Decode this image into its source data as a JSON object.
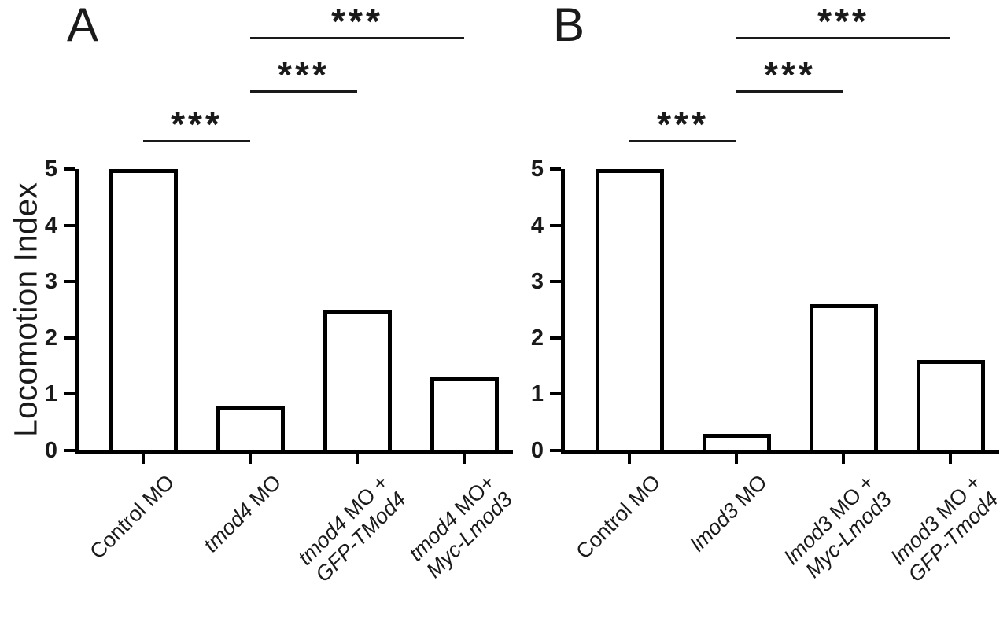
{
  "figure": {
    "background": "#ffffff",
    "ink_color": "#000000",
    "bar_fill": "#ffffff",
    "bar_outline": "#000000"
  },
  "chart_data": [
    {
      "type": "bar",
      "panel": "A",
      "title": "",
      "xlabel": "",
      "ylabel": "Locomotion Index",
      "ylim": [
        0,
        5
      ],
      "yticks": [
        0,
        1,
        2,
        3,
        4,
        5
      ],
      "grid": false,
      "legend": "none",
      "category_names": [
        "Control MO",
        "tmod4 MO",
        "tmod4 MO + GFP-TMod4",
        "tmod4 MO + Myc-Lmod3"
      ],
      "values": [
        5.0,
        0.8,
        2.5,
        1.3
      ],
      "categories": [
        {
          "lines": [
            [
              {
                "text": "Control MO",
                "italic": false
              }
            ]
          ]
        },
        {
          "lines": [
            [
              {
                "text": "tmod4",
                "italic": true
              },
              {
                "text": " MO",
                "italic": false
              }
            ]
          ]
        },
        {
          "lines": [
            [
              {
                "text": "tmod4",
                "italic": true
              },
              {
                "text": " MO +",
                "italic": false
              }
            ],
            [
              {
                "text": "GFP-TMod4",
                "italic": true
              }
            ]
          ]
        },
        {
          "lines": [
            [
              {
                "text": "tmod4",
                "italic": true
              },
              {
                "text": " MO+",
                "italic": false
              }
            ],
            [
              {
                "text": "Myc-Lmod3",
                "italic": true
              }
            ]
          ]
        }
      ],
      "significance": [
        {
          "between": [
            0,
            1
          ],
          "label": "***",
          "level": 1
        },
        {
          "between": [
            1,
            2
          ],
          "label": "***",
          "level": 2
        },
        {
          "between": [
            1,
            3
          ],
          "label": "***",
          "level": 3
        }
      ]
    },
    {
      "type": "bar",
      "panel": "B",
      "title": "",
      "xlabel": "",
      "ylabel": "",
      "ylim": [
        0,
        5
      ],
      "yticks": [
        0,
        1,
        2,
        3,
        4,
        5
      ],
      "grid": false,
      "legend": "none",
      "category_names": [
        "Control MO",
        "lmod3 MO",
        "lmod3 MO + Myc-Lmod3",
        "lmod3 MO + GFP-Tmod4"
      ],
      "values": [
        5.0,
        0.3,
        2.6,
        1.6
      ],
      "categories": [
        {
          "lines": [
            [
              {
                "text": "Control MO",
                "italic": false
              }
            ]
          ]
        },
        {
          "lines": [
            [
              {
                "text": "lmod3",
                "italic": true
              },
              {
                "text": " MO",
                "italic": false
              }
            ]
          ]
        },
        {
          "lines": [
            [
              {
                "text": "lmod3",
                "italic": true
              },
              {
                "text": " MO +",
                "italic": false
              }
            ],
            [
              {
                "text": "Myc-Lmod3",
                "italic": true
              }
            ]
          ]
        },
        {
          "lines": [
            [
              {
                "text": "lmod3",
                "italic": true
              },
              {
                "text": " MO +",
                "italic": false
              }
            ],
            [
              {
                "text": "GFP-Tmod4",
                "italic": true
              }
            ]
          ]
        }
      ],
      "significance": [
        {
          "between": [
            0,
            1
          ],
          "label": "***",
          "level": 1
        },
        {
          "between": [
            1,
            2
          ],
          "label": "***",
          "level": 2
        },
        {
          "between": [
            1,
            3
          ],
          "label": "***",
          "level": 3
        }
      ]
    }
  ]
}
